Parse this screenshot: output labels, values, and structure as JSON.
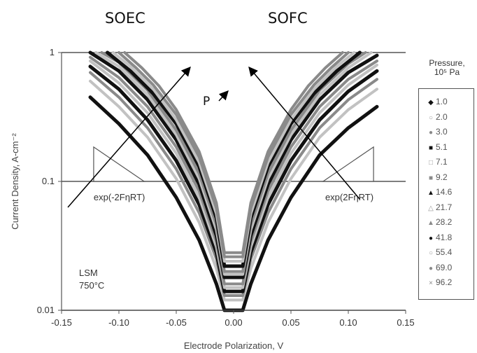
{
  "labels": {
    "left_regime": "SOEC",
    "right_regime": "SOFC"
  },
  "colors": {
    "series_black": "#111111",
    "series_gray": "#8a8a8a",
    "series_light": "#c2c2c2",
    "axis": "#555555"
  },
  "chart_data": {
    "type": "line",
    "xlabel": "Electrode Polarization, V",
    "ylabel": "Current Density, A-cm⁻²",
    "xlim": [
      -0.15,
      0.15
    ],
    "ylim": [
      0.01,
      1
    ],
    "y_scale": "log",
    "x_ticks": [
      "-0.15",
      "-0.10",
      "-0.05",
      "0.00",
      "0.05",
      "0.10",
      "0.15"
    ],
    "y_ticks": [
      "0.01",
      "0.1",
      "1"
    ],
    "grid": "horizontal lines at 0.1 and 1",
    "legend_placement": "right",
    "legend_title": [
      "Pressure,",
      "10⁵ Pa"
    ],
    "series": [
      {
        "name": "1.0",
        "marker": "◆",
        "color": "#111111",
        "x": [
          -0.125,
          -0.1,
          -0.075,
          -0.05,
          -0.03,
          -0.015,
          -0.008,
          0.008,
          0.015,
          0.03,
          0.05,
          0.075,
          0.1,
          0.125
        ],
        "y": [
          0.45,
          0.28,
          0.16,
          0.075,
          0.035,
          0.016,
          0.01,
          0.01,
          0.016,
          0.035,
          0.075,
          0.16,
          0.26,
          0.38
        ]
      },
      {
        "name": "2.0",
        "marker": "○",
        "color": "#c2c2c2",
        "x": [
          -0.125,
          -0.1,
          -0.075,
          -0.05,
          -0.03,
          -0.015,
          -0.008,
          0.008,
          0.015,
          0.03,
          0.05,
          0.075,
          0.1,
          0.125
        ],
        "y": [
          0.6,
          0.38,
          0.22,
          0.105,
          0.048,
          0.021,
          0.012,
          0.012,
          0.021,
          0.048,
          0.105,
          0.22,
          0.36,
          0.52
        ]
      },
      {
        "name": "3.0",
        "marker": "●",
        "color": "#8a8a8a",
        "x": [
          -0.125,
          -0.1,
          -0.075,
          -0.05,
          -0.03,
          -0.015,
          -0.008,
          0.008,
          0.015,
          0.03,
          0.05,
          0.075,
          0.1,
          0.125
        ],
        "y": [
          0.7,
          0.45,
          0.26,
          0.125,
          0.057,
          0.025,
          0.013,
          0.013,
          0.025,
          0.057,
          0.125,
          0.26,
          0.43,
          0.62
        ]
      },
      {
        "name": "5.1",
        "marker": "■",
        "color": "#111111",
        "x": [
          -0.125,
          -0.1,
          -0.075,
          -0.05,
          -0.03,
          -0.015,
          -0.008,
          0.008,
          0.015,
          0.03,
          0.05,
          0.075,
          0.1,
          0.125
        ],
        "y": [
          0.78,
          0.52,
          0.3,
          0.145,
          0.066,
          0.028,
          0.014,
          0.014,
          0.028,
          0.066,
          0.145,
          0.3,
          0.5,
          0.72
        ]
      },
      {
        "name": "7.1",
        "marker": "□",
        "color": "#c2c2c2",
        "x": [
          -0.125,
          -0.1,
          -0.075,
          -0.05,
          -0.03,
          -0.015,
          -0.008,
          0.008,
          0.015,
          0.03,
          0.05,
          0.075,
          0.1,
          0.125
        ],
        "y": [
          0.86,
          0.58,
          0.34,
          0.165,
          0.075,
          0.031,
          0.015,
          0.015,
          0.031,
          0.075,
          0.165,
          0.34,
          0.56,
          0.8
        ]
      },
      {
        "name": "9.2",
        "marker": "■",
        "color": "#8a8a8a",
        "x": [
          -0.125,
          -0.1,
          -0.075,
          -0.05,
          -0.03,
          -0.015,
          -0.008,
          0.008,
          0.015,
          0.03,
          0.05,
          0.075,
          0.1,
          0.125
        ],
        "y": [
          0.92,
          0.64,
          0.38,
          0.185,
          0.084,
          0.034,
          0.016,
          0.016,
          0.034,
          0.084,
          0.185,
          0.38,
          0.62,
          0.86
        ]
      },
      {
        "name": "14.6",
        "marker": "▲",
        "color": "#111111",
        "x": [
          -0.125,
          -0.1,
          -0.075,
          -0.05,
          -0.03,
          -0.015,
          -0.008,
          0.008,
          0.015,
          0.03,
          0.05,
          0.075,
          0.1,
          0.125
        ],
        "y": [
          1.0,
          0.72,
          0.43,
          0.21,
          0.095,
          0.038,
          0.018,
          0.018,
          0.038,
          0.095,
          0.21,
          0.43,
          0.7,
          0.95
        ]
      },
      {
        "name": "21.7",
        "marker": "△",
        "color": "#c2c2c2",
        "x": [
          -0.12,
          -0.1,
          -0.075,
          -0.05,
          -0.03,
          -0.015,
          -0.008,
          0.008,
          0.015,
          0.03,
          0.05,
          0.075,
          0.1,
          0.12
        ],
        "y": [
          1.0,
          0.78,
          0.47,
          0.23,
          0.105,
          0.042,
          0.019,
          0.019,
          0.042,
          0.105,
          0.23,
          0.47,
          0.76,
          1.0
        ]
      },
      {
        "name": "28.2",
        "marker": "▲",
        "color": "#8a8a8a",
        "x": [
          -0.115,
          -0.1,
          -0.075,
          -0.05,
          -0.03,
          -0.015,
          -0.008,
          0.008,
          0.015,
          0.03,
          0.05,
          0.075,
          0.1,
          0.115
        ],
        "y": [
          1.0,
          0.84,
          0.51,
          0.25,
          0.115,
          0.046,
          0.02,
          0.02,
          0.046,
          0.115,
          0.25,
          0.51,
          0.82,
          1.0
        ]
      },
      {
        "name": "41.8",
        "marker": "●",
        "color": "#111111",
        "x": [
          -0.11,
          -0.09,
          -0.07,
          -0.05,
          -0.03,
          -0.015,
          -0.008,
          0.008,
          0.015,
          0.03,
          0.05,
          0.07,
          0.09,
          0.11
        ],
        "y": [
          1.0,
          0.72,
          0.48,
          0.28,
          0.13,
          0.052,
          0.022,
          0.022,
          0.052,
          0.13,
          0.28,
          0.48,
          0.72,
          1.0
        ]
      },
      {
        "name": "55.4",
        "marker": "○",
        "color": "#c2c2c2",
        "x": [
          -0.105,
          -0.09,
          -0.07,
          -0.05,
          -0.03,
          -0.015,
          -0.008,
          0.008,
          0.015,
          0.03,
          0.05,
          0.07,
          0.09,
          0.105
        ],
        "y": [
          1.0,
          0.78,
          0.52,
          0.3,
          0.14,
          0.056,
          0.024,
          0.024,
          0.056,
          0.14,
          0.3,
          0.52,
          0.78,
          1.0
        ]
      },
      {
        "name": "69.0",
        "marker": "●",
        "color": "#8a8a8a",
        "x": [
          -0.1,
          -0.085,
          -0.07,
          -0.05,
          -0.03,
          -0.015,
          -0.008,
          0.008,
          0.015,
          0.03,
          0.05,
          0.07,
          0.085,
          0.1
        ],
        "y": [
          1.0,
          0.76,
          0.56,
          0.33,
          0.155,
          0.062,
          0.026,
          0.026,
          0.062,
          0.155,
          0.33,
          0.56,
          0.76,
          1.0
        ]
      },
      {
        "name": "96.2",
        "marker": "×",
        "color": "#8a8a8a",
        "x": [
          -0.095,
          -0.08,
          -0.065,
          -0.05,
          -0.03,
          -0.015,
          -0.008,
          0.008,
          0.015,
          0.03,
          0.05,
          0.065,
          0.08,
          0.095
        ],
        "y": [
          1.0,
          0.76,
          0.55,
          0.36,
          0.17,
          0.068,
          0.028,
          0.028,
          0.068,
          0.17,
          0.36,
          0.55,
          0.76,
          1.0
        ]
      }
    ],
    "annotations": {
      "left_slope": "exp(-2FηRT)",
      "right_slope": "exp(2FηRT)",
      "arrow_label": "P",
      "sample_line1": "LSM",
      "sample_line2": "750°C"
    }
  }
}
